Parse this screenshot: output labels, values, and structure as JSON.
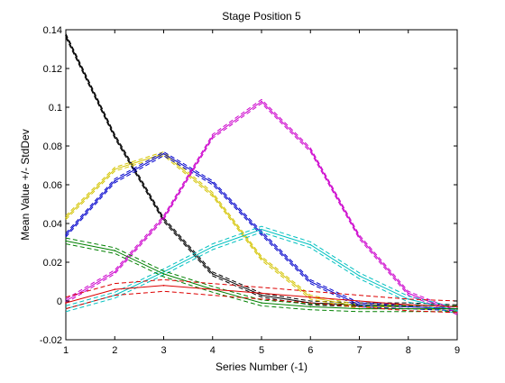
{
  "chart_data": {
    "type": "line",
    "title": "Stage Position 5",
    "xlabel": "Series Number (-1)",
    "ylabel": "Mean Value +/- StdDev",
    "xlim": [
      1,
      9
    ],
    "ylim": [
      -0.02,
      0.14
    ],
    "xticks": [
      "1",
      "2",
      "3",
      "4",
      "5",
      "6",
      "7",
      "8",
      "9"
    ],
    "yticks": [
      "-0.02",
      "0",
      "0.02",
      "0.04",
      "0.06",
      "0.08",
      "0.1",
      "0.12",
      "0.14"
    ],
    "grid": false,
    "legend": "none",
    "x": [
      1,
      2,
      3,
      4,
      5,
      6,
      7,
      8,
      9
    ],
    "series": [
      {
        "color": "#000000",
        "values": [
          0.137,
          0.085,
          0.042,
          0.014,
          0.003,
          -0.001,
          -0.002,
          -0.002,
          -0.003
        ],
        "spread": 0.001
      },
      {
        "color": "#d4c400",
        "values": [
          0.043,
          0.068,
          0.076,
          0.055,
          0.022,
          0.002,
          -0.003,
          -0.003,
          -0.004
        ],
        "spread": 0.001
      },
      {
        "color": "#0000cc",
        "values": [
          0.034,
          0.062,
          0.076,
          0.061,
          0.035,
          0.01,
          -0.002,
          -0.003,
          -0.004
        ],
        "spread": 0.001
      },
      {
        "color": "#cc00cc",
        "values": [
          0.0,
          0.015,
          0.043,
          0.085,
          0.103,
          0.078,
          0.033,
          0.004,
          -0.006
        ],
        "spread": 0.001
      },
      {
        "color": "#00c0c0",
        "values": [
          -0.004,
          0.003,
          0.015,
          0.028,
          0.037,
          0.029,
          0.013,
          0.001,
          -0.005
        ],
        "spread": 0.0015
      },
      {
        "color": "#008000",
        "values": [
          0.031,
          0.026,
          0.014,
          0.006,
          -0.001,
          -0.003,
          -0.004,
          -0.004,
          -0.004
        ],
        "spread": 0.0015
      },
      {
        "color": "#dd0000",
        "values": [
          -0.001,
          0.006,
          0.008,
          0.006,
          0.004,
          0.002,
          0.0,
          -0.002,
          -0.003
        ],
        "spread": 0.003
      }
    ]
  }
}
